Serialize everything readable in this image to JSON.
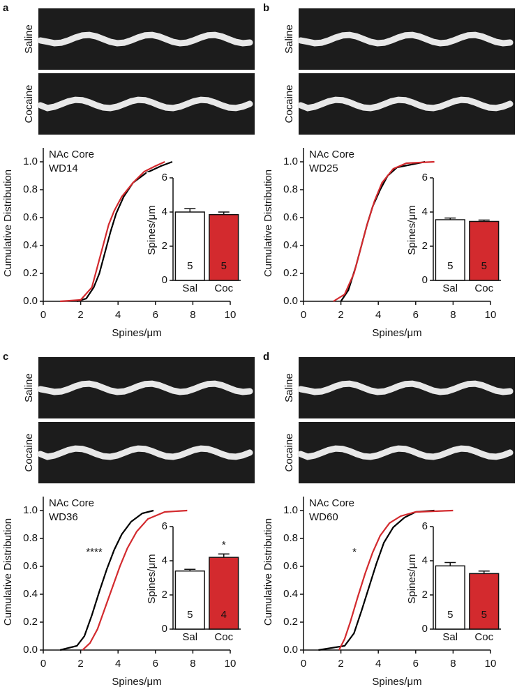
{
  "chart_data": [
    {
      "type": "line",
      "panel": "a",
      "image_labels": [
        "Saline",
        "Cocaine"
      ],
      "annotations": [
        "NAc Core",
        "WD14"
      ],
      "xlabel": "Spines/μm",
      "ylabel": "Cumulative Distribution",
      "xlim": [
        0,
        10
      ],
      "xticks": [
        0,
        2,
        4,
        6,
        8,
        10
      ],
      "ylim": [
        0,
        1.1
      ],
      "yticks": [
        {
          "value": 0,
          "label": "0.0"
        },
        0.2,
        0.4,
        0.6,
        0.8,
        {
          "value": 1,
          "label": "1.0"
        }
      ],
      "series": [
        {
          "color": "#000000",
          "x": [
            1.8,
            2.3,
            2.7,
            3.0,
            3.3,
            3.6,
            3.9,
            4.3,
            4.8,
            5.5,
            6.3,
            6.9
          ],
          "values": [
            0,
            0.02,
            0.1,
            0.2,
            0.35,
            0.5,
            0.63,
            0.75,
            0.85,
            0.92,
            0.97,
            1.0
          ]
        },
        {
          "color": "#d32a2e",
          "x": [
            0.9,
            2.0,
            2.6,
            2.9,
            3.2,
            3.5,
            3.8,
            4.2,
            4.8,
            5.4,
            6.0,
            6.5
          ],
          "values": [
            0,
            0.01,
            0.1,
            0.25,
            0.4,
            0.55,
            0.65,
            0.75,
            0.85,
            0.93,
            0.97,
            1.0
          ]
        }
      ],
      "inset": {
        "type": "bar",
        "ylabel": "Spines/μm",
        "categories": [
          "Sal",
          "Coc"
        ],
        "values": [
          4.0,
          3.85
        ],
        "errors": [
          0.2,
          0.15
        ],
        "n": [
          5,
          5
        ],
        "colors": [
          "#ffffff",
          "#d32a2e"
        ],
        "ylim": [
          0,
          6
        ],
        "yticks": [
          0,
          2,
          4,
          6
        ]
      }
    },
    {
      "type": "line",
      "panel": "b",
      "image_labels": [
        "Saline",
        "Cocaine"
      ],
      "annotations": [
        "NAc Core",
        "WD25"
      ],
      "xlabel": "Spines/μm",
      "ylabel": "Cumulative Distribution",
      "xlim": [
        0,
        10
      ],
      "xticks": [
        0,
        2,
        4,
        6,
        8,
        10
      ],
      "ylim": [
        0,
        1.1
      ],
      "yticks": [
        {
          "value": 0,
          "label": "0.0"
        },
        0.2,
        0.4,
        0.6,
        0.8,
        {
          "value": 1,
          "label": "1.0"
        }
      ],
      "series": [
        {
          "color": "#000000",
          "x": [
            2.0,
            2.4,
            2.8,
            3.1,
            3.4,
            3.7,
            4.1,
            4.5,
            5.0,
            6.5
          ],
          "values": [
            0,
            0.08,
            0.25,
            0.4,
            0.55,
            0.68,
            0.8,
            0.9,
            0.96,
            1.0
          ]
        },
        {
          "color": "#d32a2e",
          "x": [
            1.6,
            2.2,
            2.7,
            3.0,
            3.4,
            3.8,
            4.2,
            4.8,
            5.5,
            7.0
          ],
          "values": [
            0,
            0.05,
            0.2,
            0.35,
            0.55,
            0.72,
            0.85,
            0.95,
            0.99,
            1.0
          ]
        }
      ],
      "inset": {
        "type": "bar",
        "ylabel": "Spines/μm",
        "categories": [
          "Sal",
          "Coc"
        ],
        "values": [
          3.55,
          3.45
        ],
        "errors": [
          0.1,
          0.08
        ],
        "n": [
          5,
          5
        ],
        "colors": [
          "#ffffff",
          "#d32a2e"
        ],
        "ylim": [
          0,
          6
        ],
        "yticks": [
          0,
          2,
          4,
          6
        ]
      }
    },
    {
      "type": "line",
      "panel": "c",
      "image_labels": [
        "Saline",
        "Cocaine"
      ],
      "annotations": [
        "NAc Core",
        "WD36"
      ],
      "significance": "****",
      "xlabel": "Spines/μm",
      "ylabel": "Cumulative Distribution",
      "xlim": [
        0,
        10
      ],
      "xticks": [
        0,
        2,
        4,
        6,
        8,
        10
      ],
      "ylim": [
        0,
        1.1
      ],
      "yticks": [
        {
          "value": 0,
          "label": "0.0"
        },
        0.2,
        0.4,
        0.6,
        0.8,
        {
          "value": 1,
          "label": "1.0"
        }
      ],
      "series": [
        {
          "color": "#000000",
          "x": [
            0.9,
            1.8,
            2.2,
            2.6,
            3.0,
            3.4,
            3.8,
            4.2,
            4.7,
            5.3,
            5.9
          ],
          "values": [
            0,
            0.03,
            0.1,
            0.25,
            0.42,
            0.58,
            0.72,
            0.83,
            0.92,
            0.98,
            1.0
          ]
        },
        {
          "color": "#d32a2e",
          "x": [
            2.1,
            2.5,
            2.9,
            3.3,
            3.7,
            4.1,
            4.5,
            5.0,
            5.6,
            6.5,
            7.7
          ],
          "values": [
            0,
            0.05,
            0.15,
            0.3,
            0.45,
            0.6,
            0.73,
            0.85,
            0.94,
            0.99,
            1.0
          ]
        }
      ],
      "inset": {
        "type": "bar",
        "ylabel": "Spines/μm",
        "categories": [
          "Sal",
          "Coc"
        ],
        "values": [
          3.4,
          4.2
        ],
        "errors": [
          0.1,
          0.2
        ],
        "n": [
          5,
          4
        ],
        "significance": [
          null,
          "*"
        ],
        "colors": [
          "#ffffff",
          "#d32a2e"
        ],
        "ylim": [
          0,
          6
        ],
        "yticks": [
          0,
          2,
          4,
          6
        ]
      }
    },
    {
      "type": "line",
      "panel": "d",
      "image_labels": [
        "Saline",
        "Cocaine"
      ],
      "annotations": [
        "NAc Core",
        "WD60"
      ],
      "significance": "*",
      "xlabel": "Spines/μm",
      "ylabel": "Cumulative Distribution",
      "xlim": [
        0,
        10
      ],
      "xticks": [
        0,
        2,
        4,
        6,
        8,
        10
      ],
      "ylim": [
        0,
        1.1
      ],
      "yticks": [
        {
          "value": 0,
          "label": "0.0"
        },
        0.2,
        0.4,
        0.6,
        0.8,
        {
          "value": 1,
          "label": "1.0"
        }
      ],
      "series": [
        {
          "color": "#000000",
          "x": [
            0.8,
            2.2,
            2.7,
            3.1,
            3.5,
            3.9,
            4.3,
            4.8,
            5.4,
            6.0,
            7.0
          ],
          "values": [
            0,
            0.03,
            0.12,
            0.28,
            0.45,
            0.62,
            0.77,
            0.88,
            0.95,
            0.99,
            1.0
          ]
        },
        {
          "color": "#d32a2e",
          "x": [
            1.9,
            2.2,
            2.5,
            2.9,
            3.3,
            3.7,
            4.1,
            4.6,
            5.2,
            6.0,
            8.0
          ],
          "values": [
            0,
            0.08,
            0.2,
            0.38,
            0.55,
            0.7,
            0.82,
            0.91,
            0.96,
            0.99,
            1.0
          ]
        }
      ],
      "inset": {
        "type": "bar",
        "ylabel": "Spines/μm",
        "categories": [
          "Sal",
          "Coc"
        ],
        "values": [
          3.7,
          3.25
        ],
        "errors": [
          0.2,
          0.15
        ],
        "n": [
          5,
          5
        ],
        "colors": [
          "#ffffff",
          "#d32a2e"
        ],
        "ylim": [
          0,
          6
        ],
        "yticks": [
          0,
          2,
          4,
          6
        ]
      }
    }
  ]
}
